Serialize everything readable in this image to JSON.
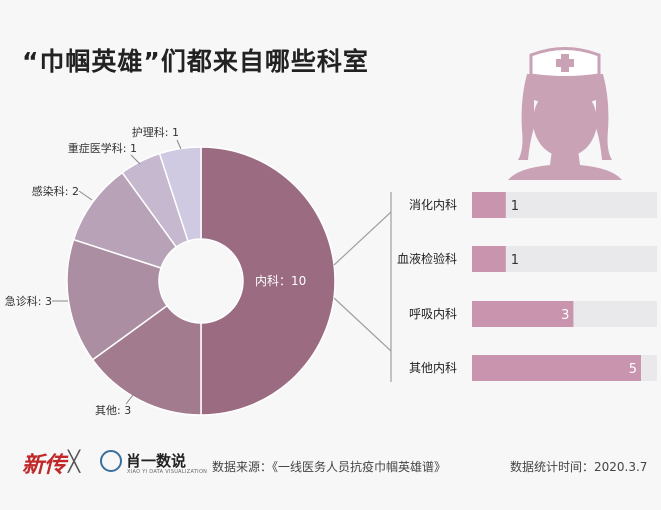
{
  "title": "“巾帼英雄”们都来自哪些科室",
  "chart_data": [
    {
      "type": "pie",
      "slices": [
        {
          "name": "内科",
          "value": 10,
          "label": "内科：10",
          "color": "#9b6b82"
        },
        {
          "name": "其他",
          "value": 3,
          "label": "其他: 3",
          "color": "#a27b8e"
        },
        {
          "name": "急诊科",
          "value": 3,
          "label": "急诊科: 3",
          "color": "#ab8ea1"
        },
        {
          "name": "感染科",
          "value": 2,
          "label": "感染科: 2",
          "color": "#b8a2b7"
        },
        {
          "name": "重症医学科",
          "value": 1,
          "label": "重症医学科: 1",
          "color": "#c6b9cf"
        },
        {
          "name": "护理科",
          "value": 1,
          "label": "护理科: 1",
          "color": "#cfc9e2"
        }
      ]
    },
    {
      "type": "bar",
      "categories": [
        "消化内科",
        "血液检验科",
        "呼吸内科",
        "其他内科"
      ],
      "values": [
        1,
        1,
        3,
        5
      ],
      "value_labels": [
        "1",
        "1",
        "3",
        "5"
      ],
      "xlim": [
        0,
        5
      ],
      "bar_color": "#c994ae",
      "track_color": "#e9e9ec"
    }
  ],
  "colors": {
    "nurse": "#c9a2b5",
    "leader_line": "#a0a0a0",
    "logo_red": "#c0282a",
    "logo_blue": "#3a6e9b"
  },
  "footer": {
    "logo_text": "新传",
    "cross": "╳",
    "brand_name": "肖一数说",
    "brand_sub": "XIAO YI DATA VISUALIZATION",
    "source": "数据来源：《一线医务人员抗疫巾帼英雄谱》",
    "date": "数据统计时间：2020.3.7"
  }
}
